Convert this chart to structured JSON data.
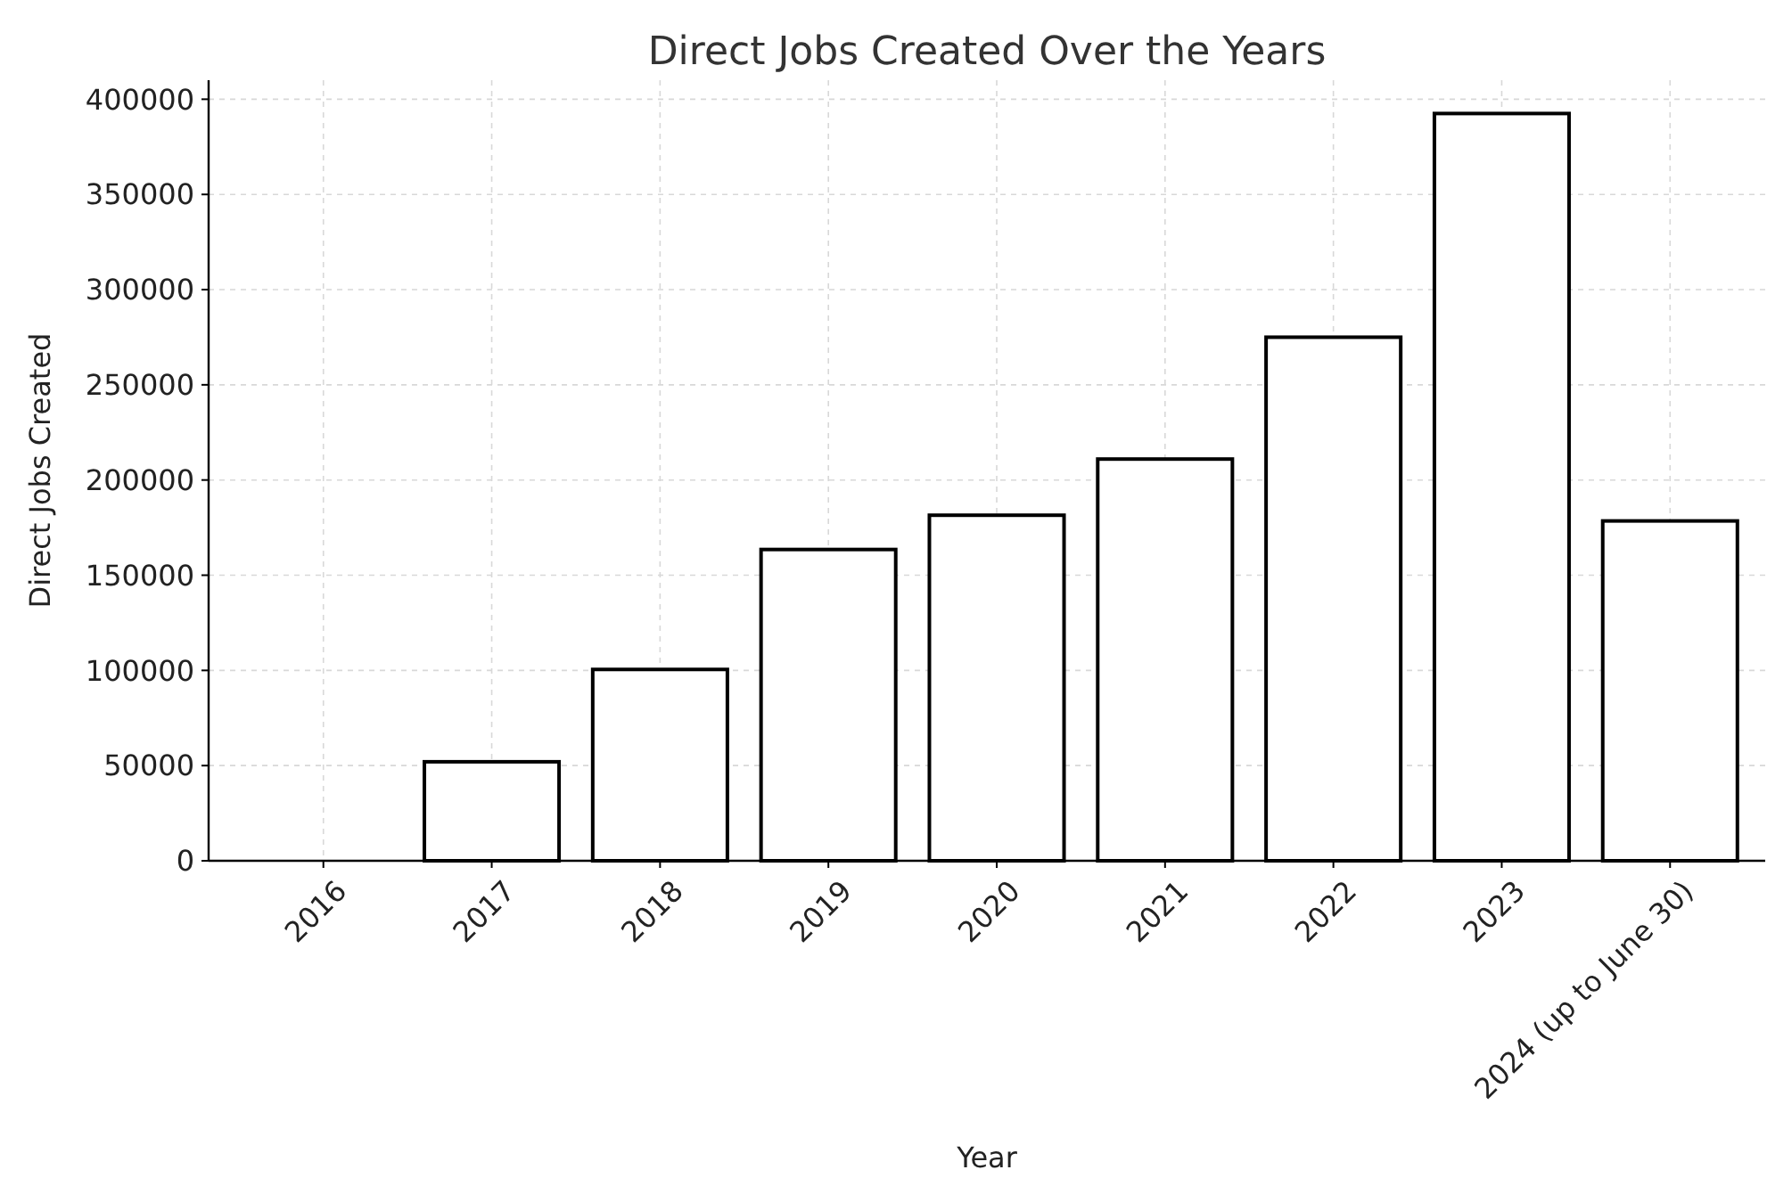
{
  "chart_data": {
    "type": "bar",
    "title": "Direct Jobs Created Over the Years",
    "xlabel": "Year",
    "ylabel": "Direct Jobs Created",
    "categories": [
      "2016",
      "2017",
      "2018",
      "2019",
      "2020",
      "2021",
      "2022",
      "2023",
      "2024 (up to June 30)"
    ],
    "values": [
      0,
      52000,
      100500,
      163500,
      181500,
      211000,
      275000,
      392500,
      178500
    ],
    "color": "#ffffff",
    "ylim": [
      0,
      410000
    ],
    "yticks": [
      0,
      50000,
      100000,
      150000,
      200000,
      250000,
      300000,
      350000,
      400000
    ],
    "grid": true
  }
}
